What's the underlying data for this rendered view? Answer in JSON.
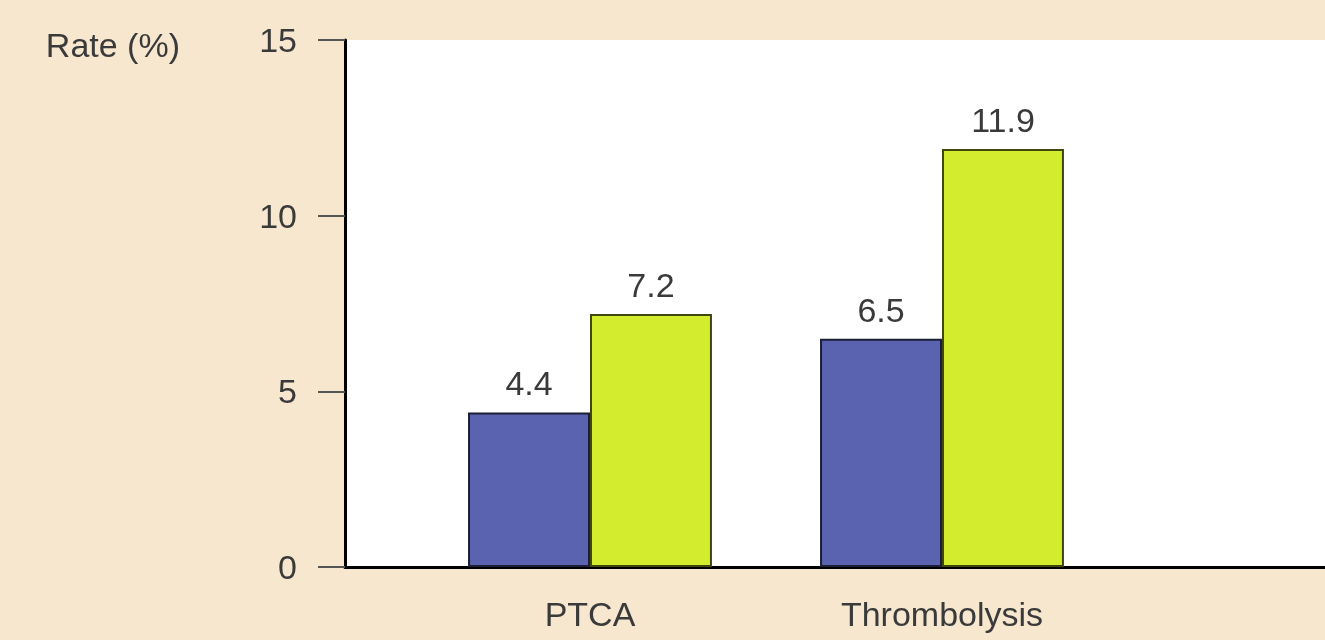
{
  "chart_data": {
    "type": "bar",
    "ylabel": "Rate (%)",
    "categories": [
      "PTCA",
      "Thrombolysis"
    ],
    "series": [
      {
        "color": "#5a63b0",
        "values": [
          4.4,
          6.5
        ]
      },
      {
        "color": "#d3ec2d",
        "values": [
          7.2,
          11.9
        ]
      }
    ],
    "ylim": [
      0,
      15
    ],
    "yticks": [
      0,
      5,
      10,
      15
    ],
    "data_labels": true,
    "grid": false
  }
}
